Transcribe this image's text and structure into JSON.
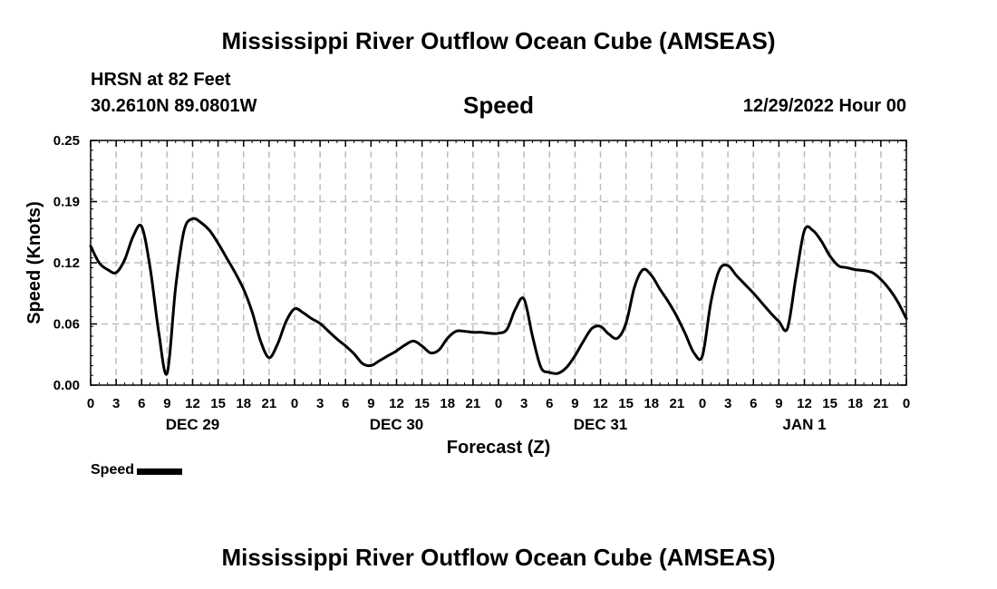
{
  "header": {
    "title": "Mississippi River Outflow Ocean Cube (AMSEAS)",
    "station": "HRSN at 82 Feet",
    "coords": "30.2610N  89.0801W",
    "chart_title": "Speed",
    "run_date": "12/29/2022 Hour 00"
  },
  "footer": {
    "title": "Mississippi River Outflow Ocean Cube (AMSEAS)"
  },
  "legend": {
    "label": "Speed",
    "color": "#000000"
  },
  "chart_data": {
    "type": "line",
    "title": "Speed",
    "xlabel": "Forecast (Z)",
    "ylabel": "Speed (Knots)",
    "ylim": [
      0,
      0.25
    ],
    "xlim": [
      0,
      96
    ],
    "x_unit": "hours from 12/29/2022 00Z",
    "y_ticks": [
      "0.00",
      "0.06",
      "0.12",
      "0.19",
      "0.25"
    ],
    "x_tick_labels": [
      "0",
      "3",
      "6",
      "9",
      "12",
      "15",
      "18",
      "21",
      "0",
      "3",
      "6",
      "9",
      "12",
      "15",
      "18",
      "21",
      "0",
      "3",
      "6",
      "9",
      "12",
      "15",
      "18",
      "21",
      "0",
      "3",
      "6",
      "9",
      "12",
      "15",
      "18",
      "21",
      "0"
    ],
    "day_labels": [
      {
        "x": 12,
        "label": "DEC 29"
      },
      {
        "x": 36,
        "label": "DEC 30"
      },
      {
        "x": 60,
        "label": "DEC 31"
      },
      {
        "x": 84,
        "label": "JAN 1"
      }
    ],
    "grid": true,
    "series": [
      {
        "name": "Speed",
        "color": "#000000",
        "x": [
          0,
          1,
          2,
          3,
          4,
          5,
          6,
          7,
          8,
          9,
          10,
          11,
          12,
          13,
          14,
          15,
          16,
          17,
          18,
          19,
          20,
          21,
          22,
          23,
          24,
          25,
          26,
          27,
          28,
          29,
          30,
          31,
          32,
          33,
          34,
          35,
          36,
          37,
          38,
          39,
          40,
          41,
          42,
          43,
          44,
          45,
          46,
          47,
          48,
          49,
          50,
          51,
          52,
          53,
          54,
          55,
          56,
          57,
          58,
          59,
          60,
          61,
          62,
          63,
          64,
          65,
          66,
          67,
          68,
          69,
          70,
          71,
          72,
          73,
          74,
          75,
          76,
          77,
          78,
          79,
          80,
          81,
          82,
          83,
          84,
          85,
          86,
          87,
          88,
          89,
          90,
          91,
          92,
          93,
          94,
          95,
          96
        ],
        "values": [
          0.142,
          0.125,
          0.118,
          0.115,
          0.128,
          0.152,
          0.162,
          0.12,
          0.055,
          0.012,
          0.1,
          0.158,
          0.17,
          0.166,
          0.158,
          0.145,
          0.13,
          0.115,
          0.098,
          0.075,
          0.045,
          0.028,
          0.042,
          0.065,
          0.078,
          0.074,
          0.068,
          0.063,
          0.055,
          0.047,
          0.04,
          0.032,
          0.022,
          0.02,
          0.025,
          0.03,
          0.035,
          0.041,
          0.045,
          0.04,
          0.033,
          0.036,
          0.048,
          0.055,
          0.055,
          0.054,
          0.054,
          0.053,
          0.053,
          0.057,
          0.078,
          0.088,
          0.05,
          0.018,
          0.013,
          0.012,
          0.018,
          0.03,
          0.045,
          0.058,
          0.06,
          0.052,
          0.048,
          0.063,
          0.1,
          0.118,
          0.112,
          0.098,
          0.085,
          0.07,
          0.052,
          0.033,
          0.03,
          0.085,
          0.118,
          0.122,
          0.112,
          0.103,
          0.094,
          0.084,
          0.074,
          0.065,
          0.058,
          0.11,
          0.158,
          0.158,
          0.147,
          0.132,
          0.122,
          0.12,
          0.118,
          0.117,
          0.115,
          0.108,
          0.098,
          0.085,
          0.068
        ]
      }
    ]
  }
}
